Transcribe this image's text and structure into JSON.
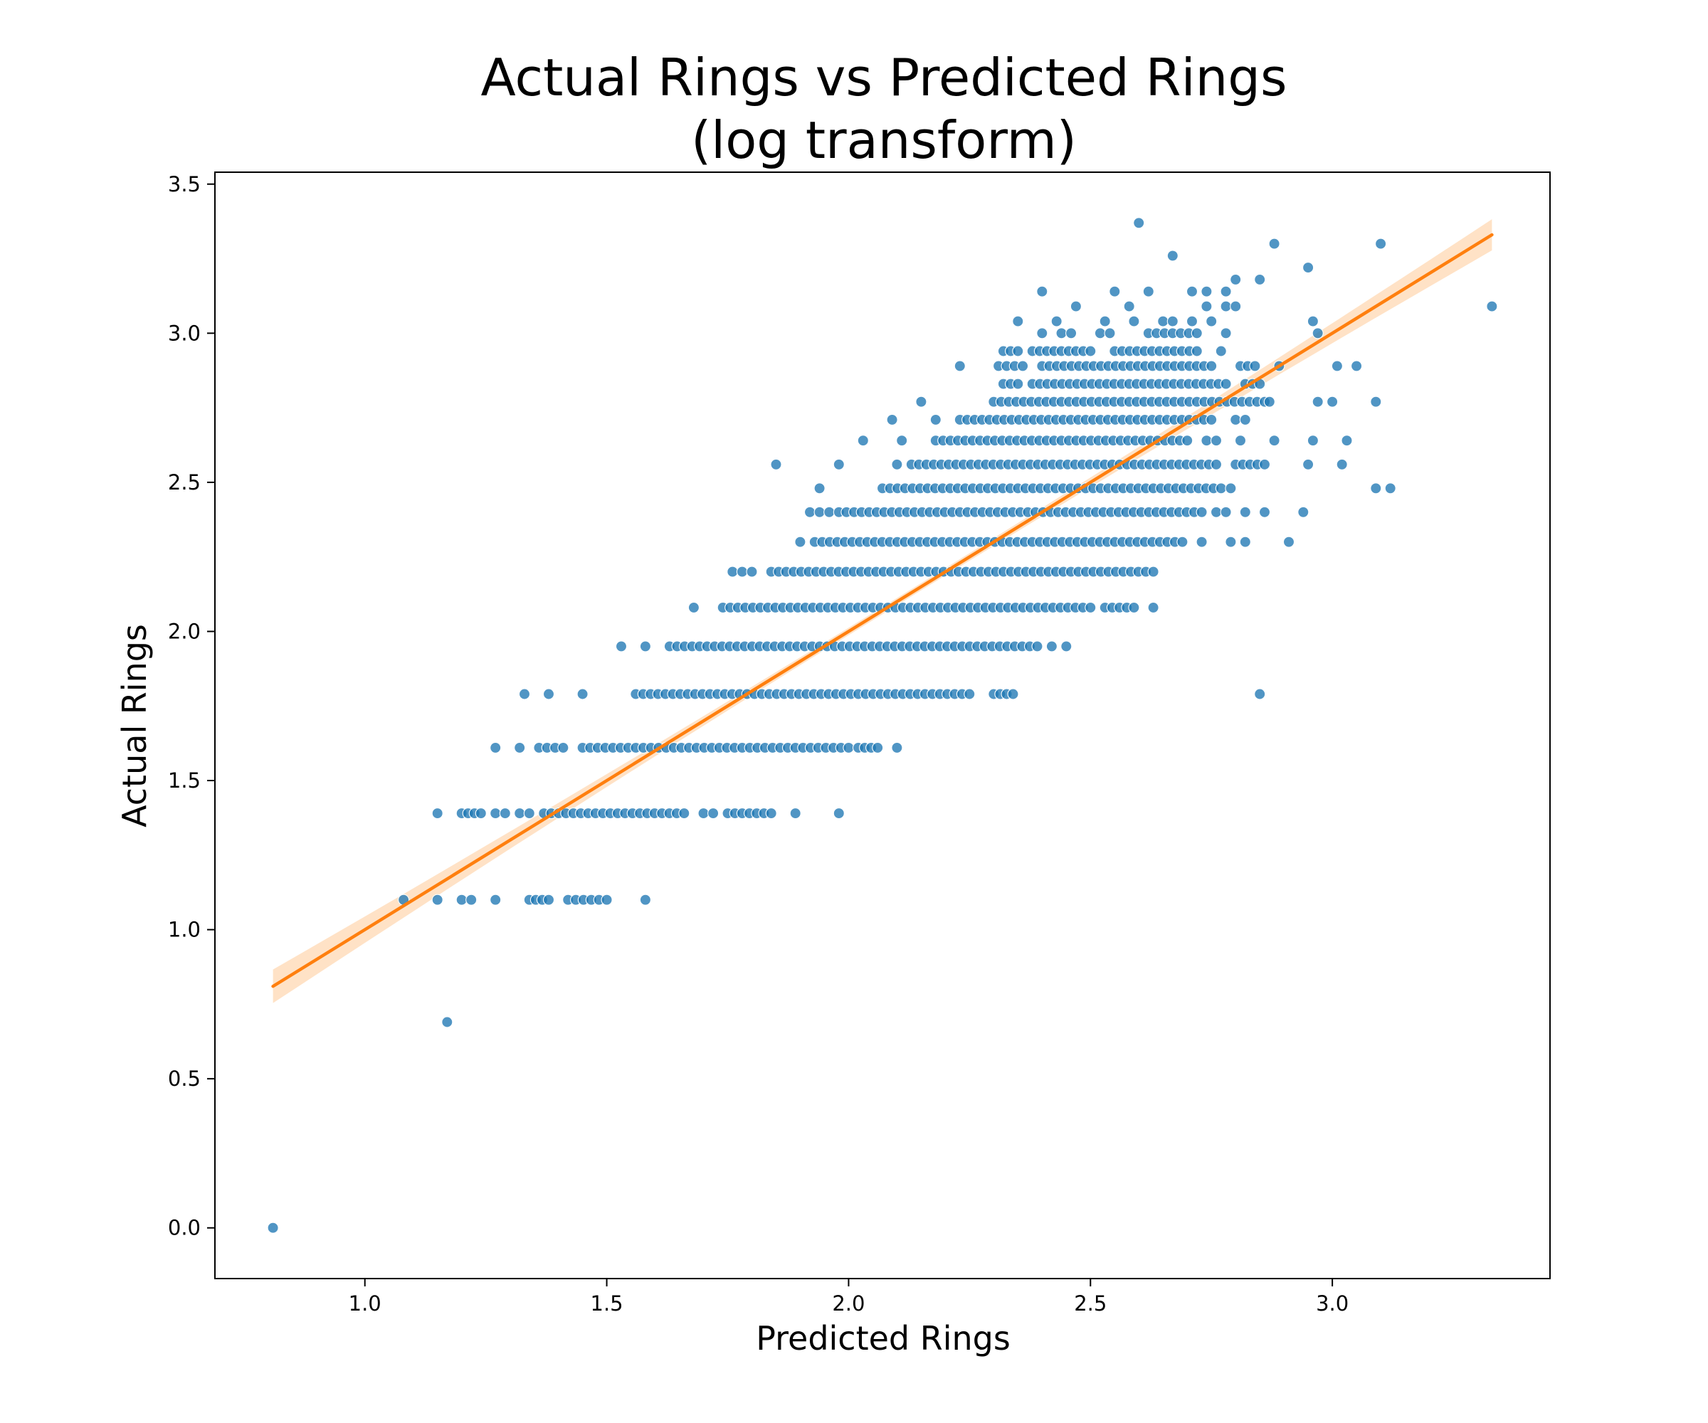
{
  "chart_data": {
    "type": "scatter",
    "title": [
      "Actual Rings vs Predicted Rings",
      "(log transform)"
    ],
    "xlabel": "Predicted Rings",
    "ylabel": "Actual Rings",
    "xlim": [
      0.69,
      3.45
    ],
    "ylim": [
      -0.17,
      3.54
    ],
    "xticks": [
      "1.0",
      "1.5",
      "2.0",
      "2.5",
      "3.0"
    ],
    "yticks": [
      "0.0",
      "0.5",
      "1.0",
      "1.5",
      "2.0",
      "2.5",
      "3.0",
      "3.5"
    ],
    "grid": false,
    "legend": "none",
    "colors": {
      "points": "#1f77b4",
      "fit_line": "#ff7f0e",
      "confidence_band": "#ffd8b3"
    },
    "regression": {
      "x": [
        0.81,
        3.33
      ],
      "y": [
        0.81,
        3.33
      ]
    },
    "rows": [
      {
        "y": 0.0,
        "segments": [
          [
            0.81,
            0.81
          ]
        ]
      },
      {
        "y": 0.69,
        "segments": [
          [
            1.17,
            1.17
          ]
        ]
      },
      {
        "y": 1.1,
        "segments": [
          [
            1.08,
            1.08
          ],
          [
            1.15,
            1.15
          ],
          [
            1.2,
            1.22
          ],
          [
            1.27,
            1.27
          ],
          [
            1.34,
            1.38
          ],
          [
            1.42,
            1.5
          ],
          [
            1.58,
            1.59
          ]
        ]
      },
      {
        "y": 1.39,
        "segments": [
          [
            1.15,
            1.15
          ],
          [
            1.2,
            1.24
          ],
          [
            1.27,
            1.29
          ],
          [
            1.32,
            1.34
          ],
          [
            1.37,
            1.66
          ],
          [
            1.7,
            1.72
          ],
          [
            1.75,
            1.84
          ],
          [
            1.89,
            1.89
          ],
          [
            1.98,
            1.98
          ]
        ]
      },
      {
        "y": 1.61,
        "segments": [
          [
            1.27,
            1.27
          ],
          [
            1.32,
            1.32
          ],
          [
            1.36,
            1.41
          ],
          [
            1.45,
            2.0
          ],
          [
            2.02,
            2.06
          ],
          [
            2.1,
            2.1
          ]
        ]
      },
      {
        "y": 1.79,
        "segments": [
          [
            1.33,
            1.33
          ],
          [
            1.38,
            1.38
          ],
          [
            1.45,
            1.45
          ],
          [
            1.56,
            2.25
          ],
          [
            2.3,
            2.34
          ],
          [
            2.85,
            2.85
          ]
        ]
      },
      {
        "y": 1.95,
        "segments": [
          [
            1.53,
            1.53
          ],
          [
            1.58,
            1.58
          ],
          [
            1.63,
            2.39
          ],
          [
            2.42,
            2.43
          ],
          [
            2.45,
            2.45
          ]
        ]
      },
      {
        "y": 2.08,
        "segments": [
          [
            1.68,
            1.68
          ],
          [
            1.74,
            2.5
          ],
          [
            2.53,
            2.59
          ],
          [
            2.63,
            2.63
          ]
        ]
      },
      {
        "y": 2.2,
        "segments": [
          [
            1.76,
            1.78
          ],
          [
            1.8,
            1.8
          ],
          [
            1.84,
            2.63
          ]
        ]
      },
      {
        "y": 2.3,
        "segments": [
          [
            1.9,
            1.9
          ],
          [
            1.93,
            2.69
          ],
          [
            2.73,
            2.73
          ],
          [
            2.79,
            2.79
          ],
          [
            2.82,
            2.82
          ],
          [
            2.91,
            2.91
          ]
        ]
      },
      {
        "y": 2.4,
        "segments": [
          [
            1.92,
            1.92
          ],
          [
            1.94,
            1.96
          ],
          [
            1.98,
            2.73
          ],
          [
            2.76,
            2.78
          ],
          [
            2.82,
            2.82
          ],
          [
            2.86,
            2.86
          ],
          [
            2.94,
            2.94
          ]
        ]
      },
      {
        "y": 2.48,
        "segments": [
          [
            1.94,
            1.94
          ],
          [
            2.07,
            2.77
          ],
          [
            2.79,
            2.79
          ]
        ]
      },
      {
        "y": 2.56,
        "segments": [
          [
            1.85,
            1.85
          ],
          [
            1.98,
            1.98
          ],
          [
            2.1,
            2.1
          ],
          [
            2.13,
            2.76
          ],
          [
            2.8,
            2.86
          ],
          [
            2.95,
            2.95
          ],
          [
            3.02,
            3.02
          ]
        ]
      },
      {
        "y": 2.64,
        "segments": [
          [
            2.03,
            2.03
          ],
          [
            2.11,
            2.11
          ],
          [
            2.18,
            2.7
          ],
          [
            2.74,
            2.76
          ],
          [
            2.81,
            2.81
          ],
          [
            2.88,
            2.88
          ],
          [
            2.96,
            2.96
          ],
          [
            3.03,
            3.03
          ]
        ]
      },
      {
        "y": 2.71,
        "segments": [
          [
            2.09,
            2.09
          ],
          [
            2.18,
            2.19
          ],
          [
            2.23,
            2.75
          ],
          [
            2.8,
            2.82
          ]
        ]
      },
      {
        "y": 2.77,
        "segments": [
          [
            2.15,
            2.15
          ],
          [
            2.3,
            2.86
          ],
          [
            2.87,
            2.87
          ],
          [
            2.97,
            2.97
          ],
          [
            3.0,
            3.0
          ],
          [
            3.09,
            3.09
          ]
        ]
      },
      {
        "y": 2.83,
        "segments": [
          [
            2.32,
            2.35
          ],
          [
            2.38,
            2.78
          ],
          [
            2.82,
            2.85
          ]
        ]
      },
      {
        "y": 2.89,
        "segments": [
          [
            2.23,
            2.23
          ],
          [
            2.31,
            2.36
          ],
          [
            2.4,
            2.75
          ],
          [
            2.81,
            2.84
          ],
          [
            2.89,
            2.89
          ],
          [
            3.01,
            3.01
          ],
          [
            3.05,
            3.05
          ]
        ]
      },
      {
        "y": 2.94,
        "segments": [
          [
            2.32,
            2.35
          ],
          [
            2.38,
            2.5
          ],
          [
            2.55,
            2.72
          ],
          [
            2.77,
            2.78
          ]
        ]
      },
      {
        "y": 3.0,
        "segments": [
          [
            2.4,
            2.4
          ],
          [
            2.44,
            2.46
          ],
          [
            2.52,
            2.54
          ],
          [
            2.62,
            2.72
          ],
          [
            2.78,
            2.79
          ],
          [
            2.97,
            2.97
          ]
        ]
      },
      {
        "y": 3.04,
        "segments": [
          [
            2.35,
            2.35
          ],
          [
            2.43,
            2.43
          ],
          [
            2.53,
            2.53
          ],
          [
            2.59,
            2.59
          ],
          [
            2.65,
            2.67
          ],
          [
            2.71,
            2.72
          ],
          [
            2.75,
            2.75
          ],
          [
            2.96,
            2.96
          ]
        ]
      },
      {
        "y": 3.09,
        "segments": [
          [
            2.47,
            2.47
          ],
          [
            2.58,
            2.58
          ],
          [
            2.74,
            2.74
          ],
          [
            2.78,
            2.78
          ],
          [
            2.8,
            2.8
          ],
          [
            3.33,
            3.33
          ]
        ]
      },
      {
        "y": 3.14,
        "segments": [
          [
            2.4,
            2.4
          ],
          [
            2.55,
            2.55
          ],
          [
            2.62,
            2.63
          ],
          [
            2.71,
            2.71
          ],
          [
            2.74,
            2.74
          ],
          [
            2.78,
            2.79
          ]
        ]
      },
      {
        "y": 3.18,
        "segments": [
          [
            2.8,
            2.8
          ],
          [
            2.85,
            2.85
          ]
        ]
      },
      {
        "y": 3.22,
        "segments": [
          [
            2.95,
            2.95
          ]
        ]
      },
      {
        "y": 3.26,
        "segments": [
          [
            2.67,
            2.67
          ]
        ]
      },
      {
        "y": 3.3,
        "segments": [
          [
            2.88,
            2.88
          ],
          [
            3.1,
            3.1
          ]
        ]
      },
      {
        "y": 3.37,
        "segments": [
          [
            2.6,
            2.6
          ]
        ]
      }
    ],
    "extra_points": [
      [
        3.09,
        2.48
      ],
      [
        3.12,
        2.48
      ]
    ]
  }
}
